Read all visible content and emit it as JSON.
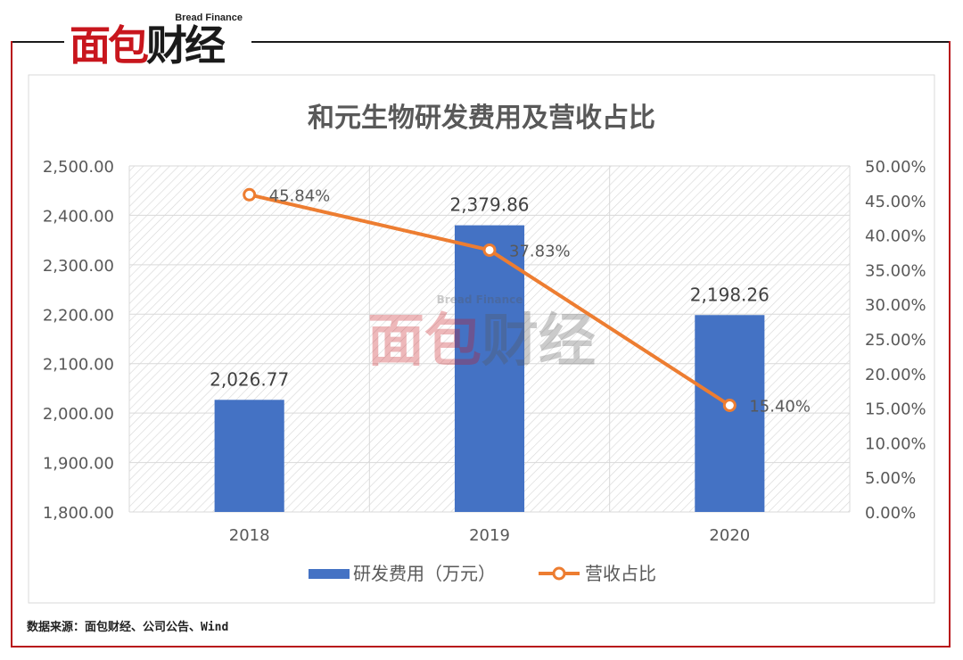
{
  "brand": {
    "name_cn": "面包财经",
    "name_en": "Bread Finance",
    "red_color": "#c8161d"
  },
  "source_note": "数据来源：面包财经、公司公告、Wind",
  "chart_data": {
    "type": "bar",
    "title": "和元生物研发费用及营收占比",
    "categories": [
      "2018",
      "2019",
      "2020"
    ],
    "series": [
      {
        "name": "研发费用（万元）",
        "type": "bar",
        "axis": "left",
        "color": "#4472c4",
        "values": [
          2026.77,
          2379.86,
          2198.26
        ],
        "labels": [
          "2,026.77",
          "2,379.86",
          "2,198.26"
        ]
      },
      {
        "name": "营收占比",
        "type": "line",
        "axis": "right",
        "color": "#ed7d31",
        "values": [
          45.84,
          37.83,
          15.4
        ],
        "labels": [
          "45.84%",
          "37.83%",
          "15.40%"
        ]
      }
    ],
    "y_left": {
      "min": 1800,
      "max": 2500,
      "step": 100,
      "ticks": [
        "1,800.00",
        "1,900.00",
        "2,000.00",
        "2,100.00",
        "2,200.00",
        "2,300.00",
        "2,400.00",
        "2,500.00"
      ]
    },
    "y_right": {
      "min": 0,
      "max": 50,
      "step": 5,
      "ticks": [
        "0.00%",
        "5.00%",
        "10.00%",
        "15.00%",
        "20.00%",
        "25.00%",
        "30.00%",
        "35.00%",
        "40.00%",
        "45.00%",
        "50.00%"
      ]
    },
    "grid": true,
    "legend_position": "bottom"
  }
}
